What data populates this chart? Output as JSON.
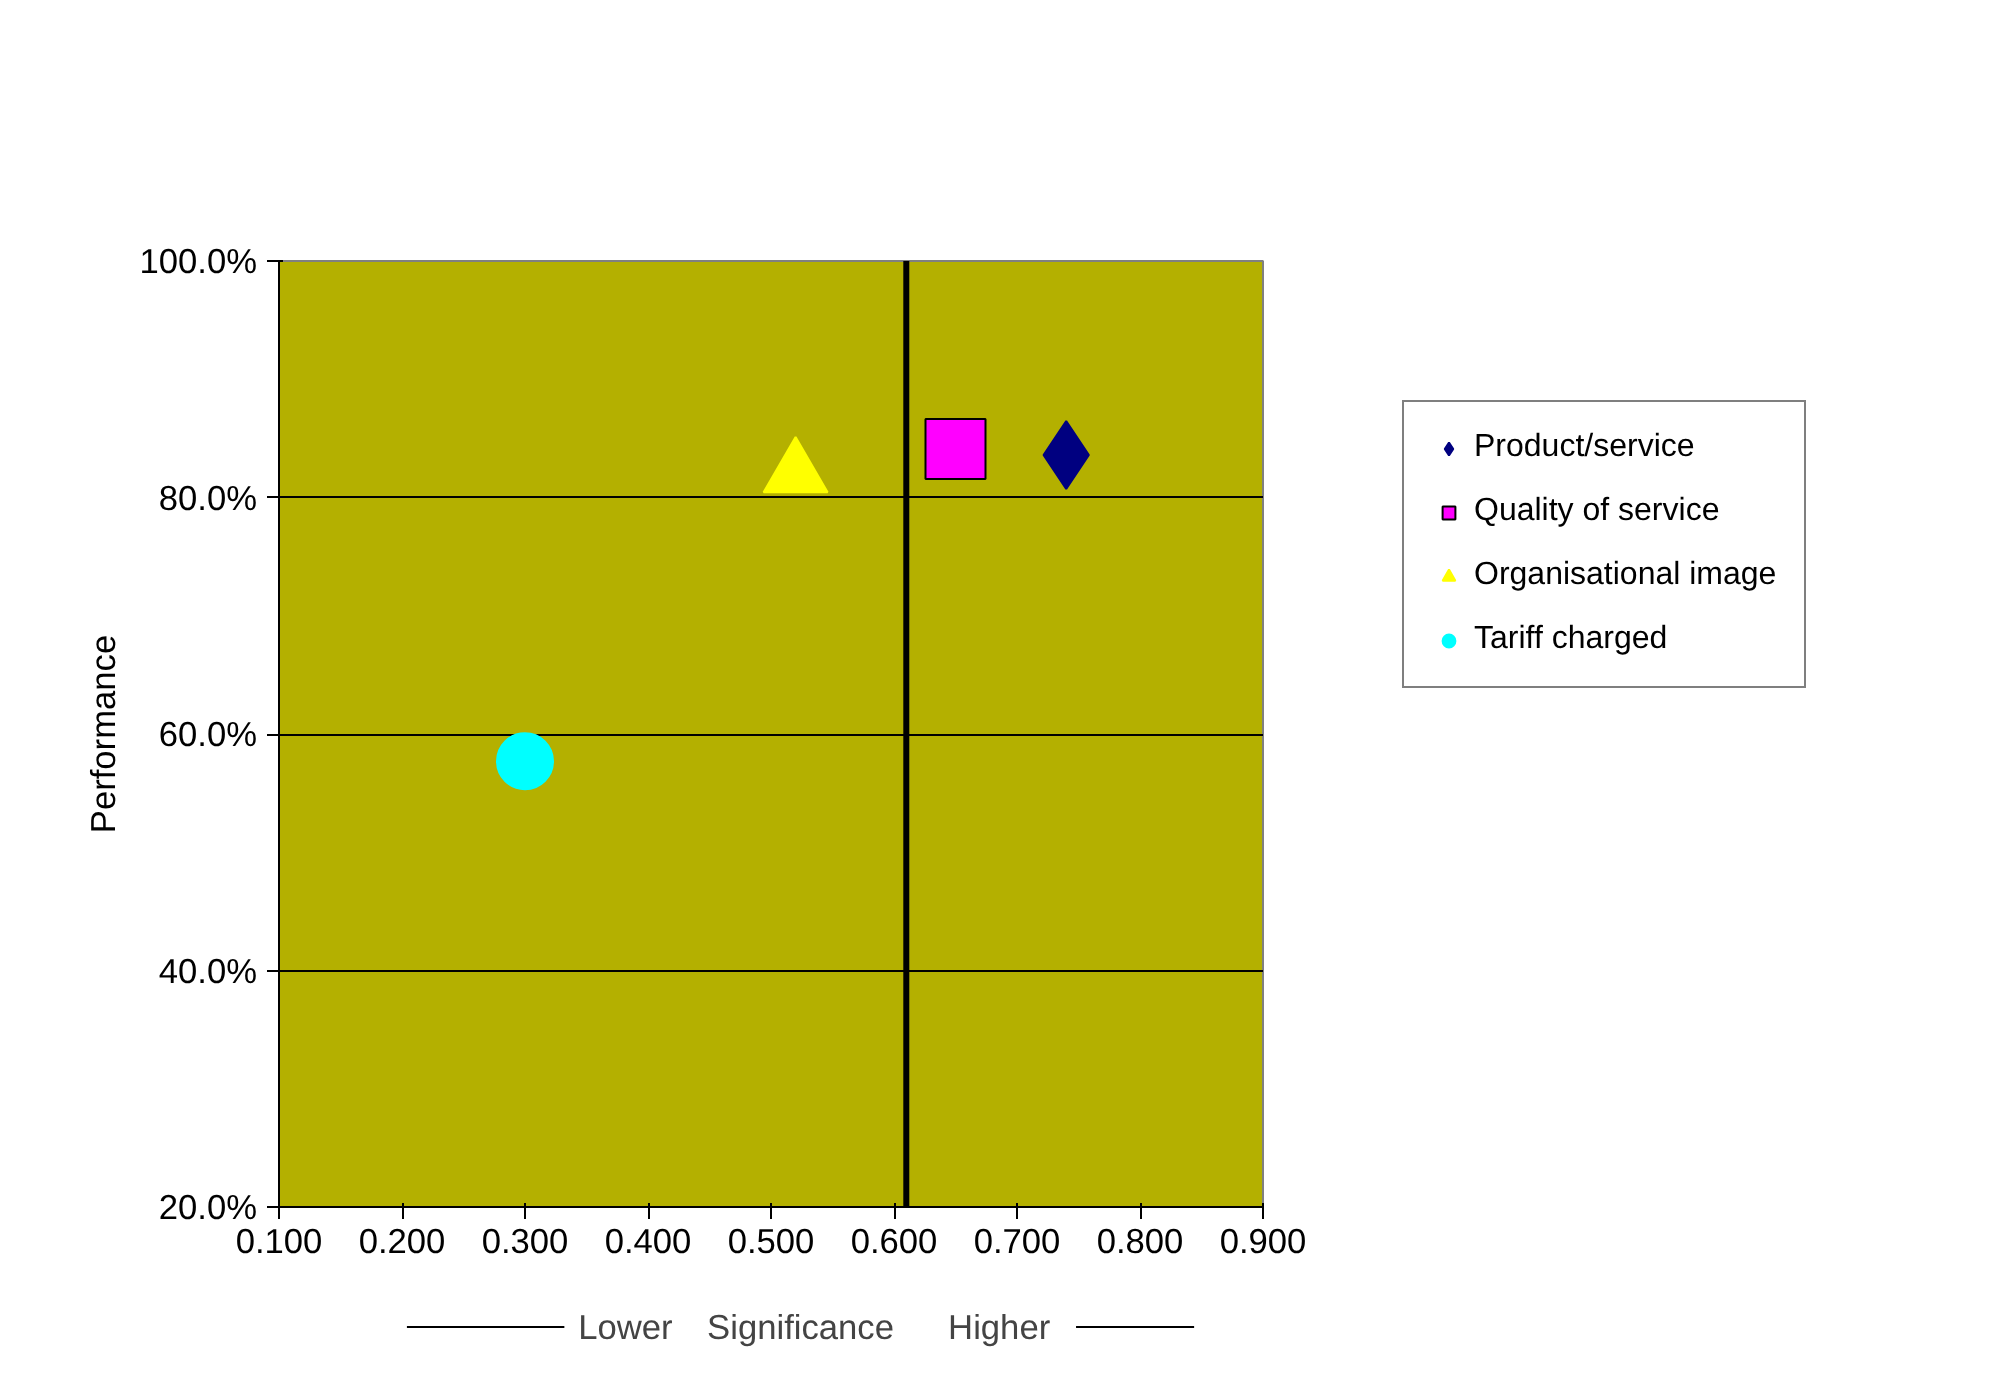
{
  "chart_data": {
    "type": "scatter",
    "xlabel": "Significance",
    "ylabel": "Performance",
    "annotations": [
      "Lower",
      "Higher"
    ],
    "xlim": [
      0.1,
      0.9
    ],
    "xticks": [
      {
        "value": 0.1,
        "label": "0.100"
      },
      {
        "value": 0.2,
        "label": "0.200"
      },
      {
        "value": 0.3,
        "label": "0.300"
      },
      {
        "value": 0.4,
        "label": "0.400"
      },
      {
        "value": 0.5,
        "label": "0.500"
      },
      {
        "value": 0.6,
        "label": "0.600"
      },
      {
        "value": 0.7,
        "label": "0.700"
      },
      {
        "value": 0.8,
        "label": "0.800"
      },
      {
        "value": 0.9,
        "label": "0.900"
      }
    ],
    "ylim": [
      20,
      100
    ],
    "yticks": [
      {
        "value": 20,
        "label": "20.0%"
      },
      {
        "value": 40,
        "label": "40.0%"
      },
      {
        "value": 60,
        "label": "60.0%"
      },
      {
        "value": 80,
        "label": "80.0%"
      },
      {
        "value": 100,
        "label": "100.0%"
      }
    ],
    "grid": "y",
    "legend": "top right",
    "ref_lines": [
      {
        "axis": "x",
        "value": 0.61,
        "color": "#000000"
      }
    ],
    "series": [
      {
        "name": "Product/service",
        "color": "#000080",
        "marker": "diamond",
        "x": [
          0.74
        ],
        "values": [
          83.6
        ]
      },
      {
        "name": "Quality of service",
        "color": "#ff00ff",
        "marker": "square",
        "x": [
          0.65
        ],
        "values": [
          84.1
        ]
      },
      {
        "name": "Organisational image",
        "color": "#ffff00",
        "marker": "triangle",
        "x": [
          0.52
        ],
        "values": [
          82
        ]
      },
      {
        "name": "Tariff charged",
        "color": "#00ffff",
        "marker": "circle",
        "x": [
          0.3
        ],
        "values": [
          57.7
        ]
      }
    ]
  }
}
